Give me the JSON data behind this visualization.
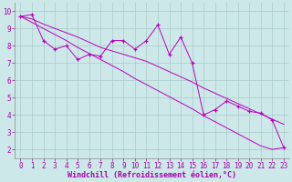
{
  "xlabel": "Windchill (Refroidissement éolien,°C)",
  "ylabel": "",
  "background_color": "#cce8e8",
  "line_color": "#bb00bb",
  "grid_color": "#aacccc",
  "tick_color": "#aa00aa",
  "x_data": [
    0,
    1,
    2,
    3,
    4,
    5,
    6,
    7,
    8,
    9,
    10,
    11,
    12,
    13,
    14,
    15,
    16,
    17,
    18,
    19,
    20,
    21,
    22,
    23
  ],
  "y_actual": [
    9.7,
    9.8,
    8.3,
    7.8,
    8.0,
    7.2,
    7.5,
    7.4,
    8.3,
    8.3,
    7.8,
    8.3,
    9.2,
    7.5,
    8.5,
    7.0,
    4.0,
    4.3,
    4.8,
    4.5,
    4.2,
    4.1,
    3.7,
    2.1
  ],
  "y_trend1": [
    9.7,
    9.55,
    9.25,
    9.0,
    8.75,
    8.5,
    8.2,
    7.9,
    7.7,
    7.5,
    7.3,
    7.1,
    6.8,
    6.5,
    6.2,
    5.9,
    5.55,
    5.25,
    4.95,
    4.65,
    4.35,
    4.05,
    3.75,
    3.45
  ],
  "y_trend2": [
    9.7,
    9.35,
    9.0,
    8.65,
    8.3,
    7.9,
    7.55,
    7.2,
    6.85,
    6.5,
    6.1,
    5.75,
    5.4,
    5.05,
    4.7,
    4.35,
    3.95,
    3.6,
    3.25,
    2.9,
    2.55,
    2.2,
    2.0,
    2.1
  ],
  "xlim": [
    -0.5,
    23.5
  ],
  "ylim": [
    1.5,
    10.5
  ],
  "yticks": [
    2,
    3,
    4,
    5,
    6,
    7,
    8,
    9,
    10
  ],
  "xticks": [
    0,
    1,
    2,
    3,
    4,
    5,
    6,
    7,
    8,
    9,
    10,
    11,
    12,
    13,
    14,
    15,
    16,
    17,
    18,
    19,
    20,
    21,
    22,
    23
  ],
  "tick_fontsize": 5.5,
  "xlabel_fontsize": 6.0
}
